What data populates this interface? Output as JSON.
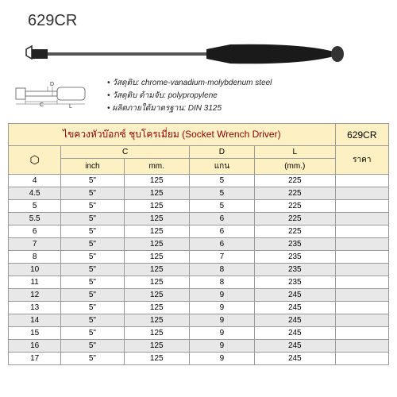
{
  "product_code": "629CR",
  "specs": [
    "• วัสดุติบ: chrome-vanadium-molybdenum steel",
    "• วัสดุติบ ด้ามจับ: polypropylene",
    "• ผลิตภายใต้มาตรฐาน: DIN 3125"
  ],
  "table": {
    "title": "ไขควงหัวบ๊อกซ์ ชุบโครเมี่ยม (Socket Wrench Driver)",
    "title_code": "629CR",
    "headers": {
      "hex": "⬡",
      "c": "C",
      "c_inch": "inch",
      "c_mm": "mm.",
      "d": "D",
      "d_sub": "แกน",
      "l": "L",
      "l_sub": "(mm.)",
      "price": "ราคา"
    },
    "rows": [
      {
        "s": "4",
        "ci": "5\"",
        "cm": "125",
        "d": "5",
        "l": "225"
      },
      {
        "s": "4.5",
        "ci": "5\"",
        "cm": "125",
        "d": "5",
        "l": "225"
      },
      {
        "s": "5",
        "ci": "5\"",
        "cm": "125",
        "d": "5",
        "l": "225"
      },
      {
        "s": "5.5",
        "ci": "5\"",
        "cm": "125",
        "d": "6",
        "l": "225"
      },
      {
        "s": "6",
        "ci": "5\"",
        "cm": "125",
        "d": "6",
        "l": "225"
      },
      {
        "s": "7",
        "ci": "5\"",
        "cm": "125",
        "d": "6",
        "l": "235"
      },
      {
        "s": "8",
        "ci": "5\"",
        "cm": "125",
        "d": "7",
        "l": "235"
      },
      {
        "s": "10",
        "ci": "5\"",
        "cm": "125",
        "d": "8",
        "l": "235"
      },
      {
        "s": "11",
        "ci": "5\"",
        "cm": "125",
        "d": "8",
        "l": "235"
      },
      {
        "s": "12",
        "ci": "5\"",
        "cm": "125",
        "d": "9",
        "l": "245"
      },
      {
        "s": "13",
        "ci": "5\"",
        "cm": "125",
        "d": "9",
        "l": "245"
      },
      {
        "s": "14",
        "ci": "5\"",
        "cm": "125",
        "d": "9",
        "l": "245"
      },
      {
        "s": "15",
        "ci": "5\"",
        "cm": "125",
        "d": "9",
        "l": "245"
      },
      {
        "s": "16",
        "ci": "5\"",
        "cm": "125",
        "d": "9",
        "l": "245"
      },
      {
        "s": "17",
        "ci": "5\"",
        "cm": "125",
        "d": "9",
        "l": "245"
      }
    ]
  },
  "colors": {
    "header_bg": "#fdf0c2",
    "alt_row": "#e8e8e8",
    "title_color": "#8a0000",
    "border": "#999"
  }
}
